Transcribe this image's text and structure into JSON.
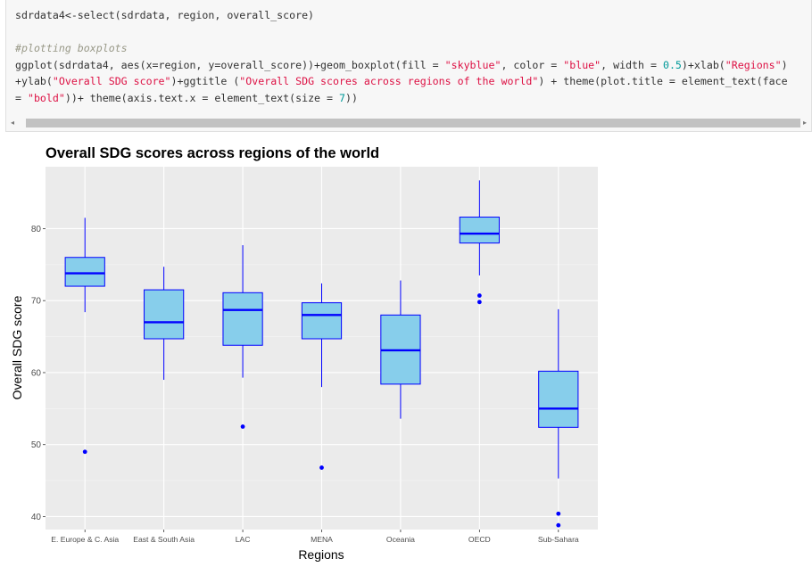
{
  "code": {
    "line1": "sdrdata4<-select(sdrdata, region, overall_score)",
    "line2": "",
    "comment": "#plotting boxplots",
    "line4": [
      {
        "t": "ggplot(sdrdata4, aes(x=region, y=overall_score))+geom_boxplot(fill = "
      },
      {
        "t": "\"skyblue\"",
        "c": "st"
      },
      {
        "t": ", color = "
      },
      {
        "t": "\"blue\"",
        "c": "st"
      },
      {
        "t": ", width = "
      },
      {
        "t": "0.5",
        "c": "nm"
      },
      {
        "t": ")+xlab("
      },
      {
        "t": "\"Regions\"",
        "c": "st"
      },
      {
        "t": ")"
      }
    ],
    "line5": [
      {
        "t": "+ylab("
      },
      {
        "t": "\"Overall SDG score\"",
        "c": "st"
      },
      {
        "t": ")+ggtitle ("
      },
      {
        "t": "\"Overall SDG scores across regions of the world\"",
        "c": "st"
      },
      {
        "t": ") + theme(plot.title = element_text(face"
      }
    ],
    "line6": [
      {
        "t": "= "
      },
      {
        "t": "\"bold\"",
        "c": "st"
      },
      {
        "t": "))+ theme(axis.text.x = element_text(size = "
      },
      {
        "t": "7",
        "c": "nm"
      },
      {
        "t": "))"
      }
    ]
  },
  "scrollbar": {
    "left_arrow": "◂",
    "right_arrow": "▸"
  },
  "colors": {
    "panel": "#ebebeb",
    "grid_major": "#ffffff",
    "grid_minor": "#f5f5f5",
    "box_fill": "#87ceeb",
    "box_stroke": "#0000ff",
    "axis_text": "#4d4d4d",
    "title": "#000000"
  },
  "chart_data": {
    "type": "boxplot",
    "title": "Overall SDG scores across regions of the world",
    "xlabel": "Regions",
    "ylabel": "Overall SDG score",
    "ylim": [
      38.2,
      88.6
    ],
    "yticks": [
      40,
      50,
      60,
      70,
      80
    ],
    "grid": true,
    "categories": [
      "E. Europe & C. Asia",
      "East & South Asia",
      "LAC",
      "MENA",
      "Oceania",
      "OECD",
      "Sub-Sahara"
    ],
    "boxes": [
      {
        "whisker_low": 68.4,
        "q1": 72.0,
        "median": 73.8,
        "q3": 76.0,
        "whisker_high": 81.5,
        "outliers": [
          49.0
        ]
      },
      {
        "whisker_low": 59.0,
        "q1": 64.7,
        "median": 67.0,
        "q3": 71.5,
        "whisker_high": 74.7,
        "outliers": []
      },
      {
        "whisker_low": 59.3,
        "q1": 63.8,
        "median": 68.7,
        "q3": 71.1,
        "whisker_high": 77.7,
        "outliers": [
          52.5
        ]
      },
      {
        "whisker_low": 58.0,
        "q1": 64.7,
        "median": 68.0,
        "q3": 69.7,
        "whisker_high": 72.4,
        "outliers": [
          46.8
        ]
      },
      {
        "whisker_low": 53.6,
        "q1": 58.4,
        "median": 63.1,
        "q3": 68.0,
        "whisker_high": 72.8,
        "outliers": []
      },
      {
        "whisker_low": 73.5,
        "q1": 78.0,
        "median": 79.3,
        "q3": 81.6,
        "whisker_high": 86.7,
        "outliers": [
          70.7,
          69.8
        ]
      },
      {
        "whisker_low": 45.3,
        "q1": 52.4,
        "median": 55.0,
        "q3": 60.2,
        "whisker_high": 68.8,
        "outliers": [
          40.4,
          38.8
        ]
      }
    ]
  }
}
